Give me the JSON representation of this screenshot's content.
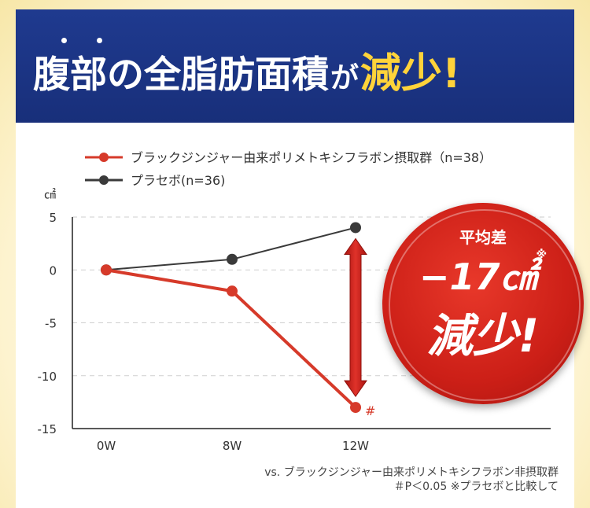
{
  "header": {
    "title_main": "腹部の全脂肪面積",
    "title_particle": "が",
    "title_highlight": "減少!"
  },
  "badge": {
    "line1": "平均差",
    "line2": "−17㎠",
    "line2_note": "※",
    "line3": "減少!"
  },
  "colors": {
    "banner": "#1f3a8f",
    "highlight": "#ffd33a",
    "treatment": "#d63a2a",
    "placebo": "#3a3a3a",
    "arrow": "#c8201c"
  },
  "chart_data": {
    "type": "line",
    "categories": [
      "0W",
      "8W",
      "12W"
    ],
    "ylabel": "㎠",
    "ylim": [
      -15,
      5
    ],
    "yticks": [
      5,
      0,
      -5,
      -10,
      -15
    ],
    "grid": true,
    "legend_position": "top-left",
    "series": [
      {
        "name": "ブラックジンジャー由来ポリメトキシフラボン摂取群（n=38）",
        "values": [
          0,
          -2,
          -13
        ],
        "color": "#d63a2a"
      },
      {
        "name": "プラセボ(n=36)",
        "values": [
          0,
          1,
          4
        ],
        "color": "#3a3a3a"
      }
    ],
    "annotations": [
      {
        "label": "#",
        "category": "12W",
        "value": -13
      }
    ]
  },
  "footnote": {
    "line1": "vs. ブラックジンジャー由来ポリメトキシフラボン非摂取群",
    "line2": "＃P＜0.05 ※プラセボと比較して"
  }
}
